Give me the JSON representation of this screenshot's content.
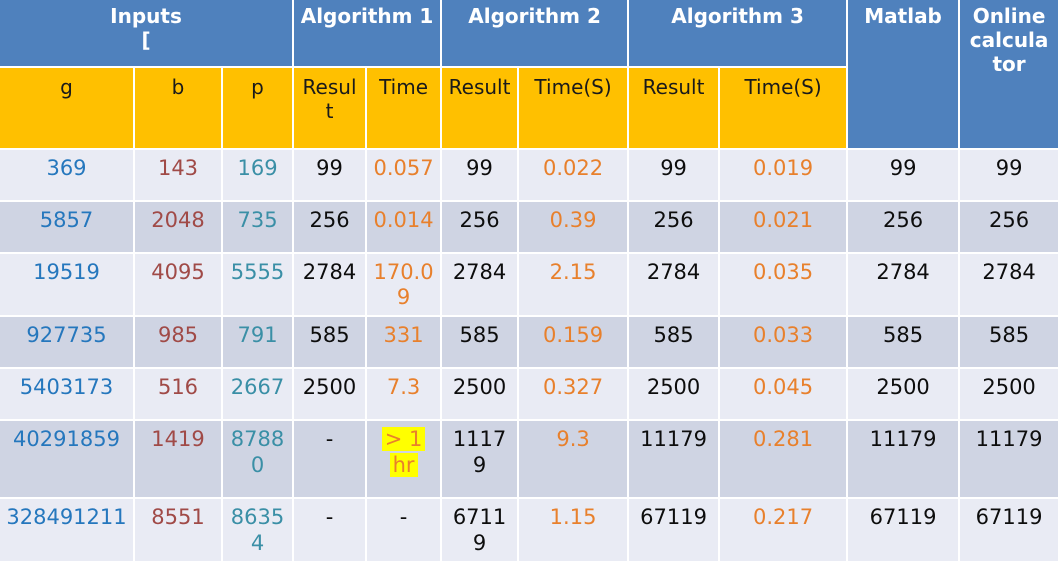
{
  "palette": {
    "header_blue": "#4F81BD",
    "header_orange": "#FFC000",
    "row_light": "#E9EBF4",
    "row_dark": "#CFD4E3",
    "header_text_white": "#FFFFFF",
    "result_text_black": "#0D0D0D",
    "g_column_blue": "#2577BD",
    "b_column_red": "#A04A47",
    "p_column_teal": "#3A8FA6",
    "time_column_orange": "#E8802C",
    "highlight_yellow": "#FFFF00"
  },
  "table": {
    "top_headers": [
      {
        "label": "Inputs\n["
      },
      {
        "label": "Algorithm 1"
      },
      {
        "label": "Algorithm 2"
      },
      {
        "label": "Algorithm 3"
      },
      {
        "label": "Matlab"
      },
      {
        "label": "Online calculator"
      }
    ],
    "sub_headers": [
      "g",
      "b",
      "p",
      "Result",
      "Time",
      "Result",
      "Time(S)",
      "Result",
      "Time(S)"
    ],
    "rows": [
      {
        "g": "369",
        "b": "143",
        "p": "169",
        "a1_result": "99",
        "a1_time": "0.057",
        "a2_result": "99",
        "a2_time": "0.022",
        "a3_result": "99",
        "a3_time": "0.019",
        "matlab": "99",
        "online": "99"
      },
      {
        "g": "5857",
        "b": "2048",
        "p": "735",
        "a1_result": "256",
        "a1_time": "0.014",
        "a2_result": "256",
        "a2_time": "0.39",
        "a3_result": "256",
        "a3_time": "0.021",
        "matlab": "256",
        "online": "256"
      },
      {
        "g": "19519",
        "b": "4095",
        "p": "5555",
        "a1_result": "2784",
        "a1_time": "170.09",
        "a2_result": "2784",
        "a2_time": "2.15",
        "a3_result": "2784",
        "a3_time": "0.035",
        "matlab": "2784",
        "online": "2784"
      },
      {
        "g": "927735",
        "b": "985",
        "p": "791",
        "a1_result": "585",
        "a1_time": "331",
        "a2_result": "585",
        "a2_time": "0.159",
        "a3_result": "585",
        "a3_time": "0.033",
        "matlab": "585",
        "online": "585"
      },
      {
        "g": "5403173",
        "b": "516",
        "p": "2667",
        "a1_result": "2500",
        "a1_time": "7.3",
        "a2_result": "2500",
        "a2_time": "0.327",
        "a3_result": "2500",
        "a3_time": "0.045",
        "matlab": "2500",
        "online": "2500"
      },
      {
        "g": "40291859",
        "b": "1419",
        "p": "87880",
        "a1_result": "-",
        "a1_time": {
          "text": "> 1 hr",
          "highlight": true
        },
        "a2_result": "11179",
        "a2_time": "9.3",
        "a3_result": "11179",
        "a3_time": "0.281",
        "matlab": "11179",
        "online": "11179"
      },
      {
        "g": "328491211",
        "b": "8551",
        "p": "86354",
        "a1_result": "-",
        "a1_time": "-",
        "a2_result": "67119",
        "a2_time": "1.15",
        "a3_result": "67119",
        "a3_time": "0.217",
        "matlab": "67119",
        "online": "67119"
      }
    ]
  }
}
